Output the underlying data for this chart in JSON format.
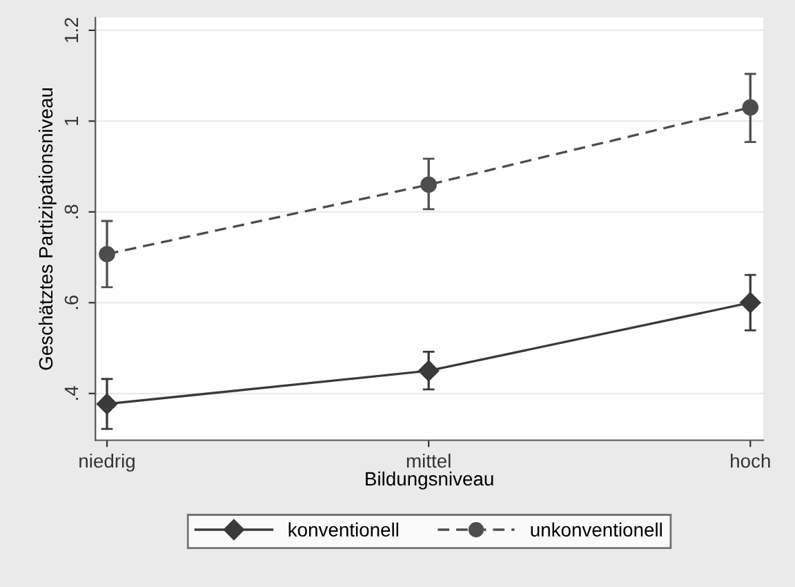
{
  "chart_data": {
    "type": "line",
    "xlabel": "Bildungsniveau",
    "ylabel": "Geschätztes Partizipationsniveau",
    "categories": [
      "niedrig",
      "mittel",
      "hoch"
    ],
    "series": [
      {
        "name": "konventionell",
        "color": "#3a3a3a",
        "marker": "diamond",
        "line_style": "solid",
        "values": [
          0.377,
          0.45,
          0.6
        ],
        "errors": [
          [
            0.322,
            0.432
          ],
          [
            0.409,
            0.492
          ],
          [
            0.539,
            0.661
          ]
        ]
      },
      {
        "name": "unkonventionell",
        "color": "#4d4d4d",
        "marker": "circle",
        "line_style": "dashed",
        "values": [
          0.707,
          0.86,
          1.03
        ],
        "errors": [
          [
            0.634,
            0.78
          ],
          [
            0.806,
            0.917
          ],
          [
            0.954,
            1.104
          ]
        ]
      }
    ],
    "ylim": [
      0.297,
      1.228
    ],
    "yticks": [
      {
        "value": 0.4,
        "label": ".4"
      },
      {
        "value": 0.6,
        "label": ".6"
      },
      {
        "value": 0.8,
        "label": ".8"
      },
      {
        "value": 1,
        "label": "1"
      },
      {
        "value": 1.2,
        "label": "1.2"
      }
    ],
    "grid": "y",
    "legend": "bottom"
  }
}
